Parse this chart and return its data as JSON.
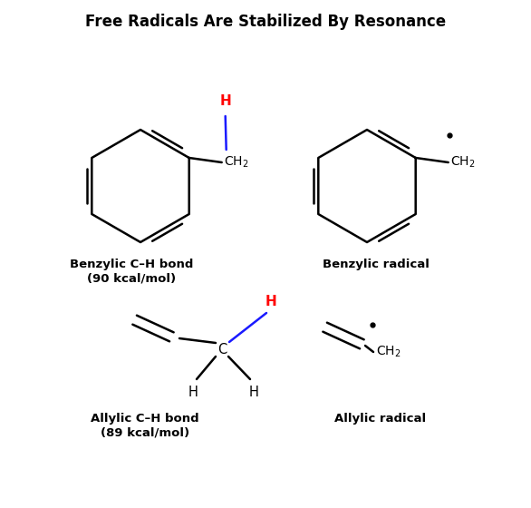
{
  "title": "Free Radicals Are Stabilized By Resonance",
  "title_fontsize": 12,
  "title_fontweight": "bold",
  "background_color": "#ffffff",
  "black": "#000000",
  "red": "#ff0000",
  "blue": "#1a1aff",
  "labels": {
    "benzylic_bond": "Benzylic C–H bond\n(90 kcal/mol)",
    "benzylic_radical": "Benzylic radical",
    "allylic_bond": "Allylic C–H bond\n(89 kcal/mol)",
    "allylic_radical": "Allylic radical"
  },
  "lw": 1.8,
  "ring_r": 0.62
}
